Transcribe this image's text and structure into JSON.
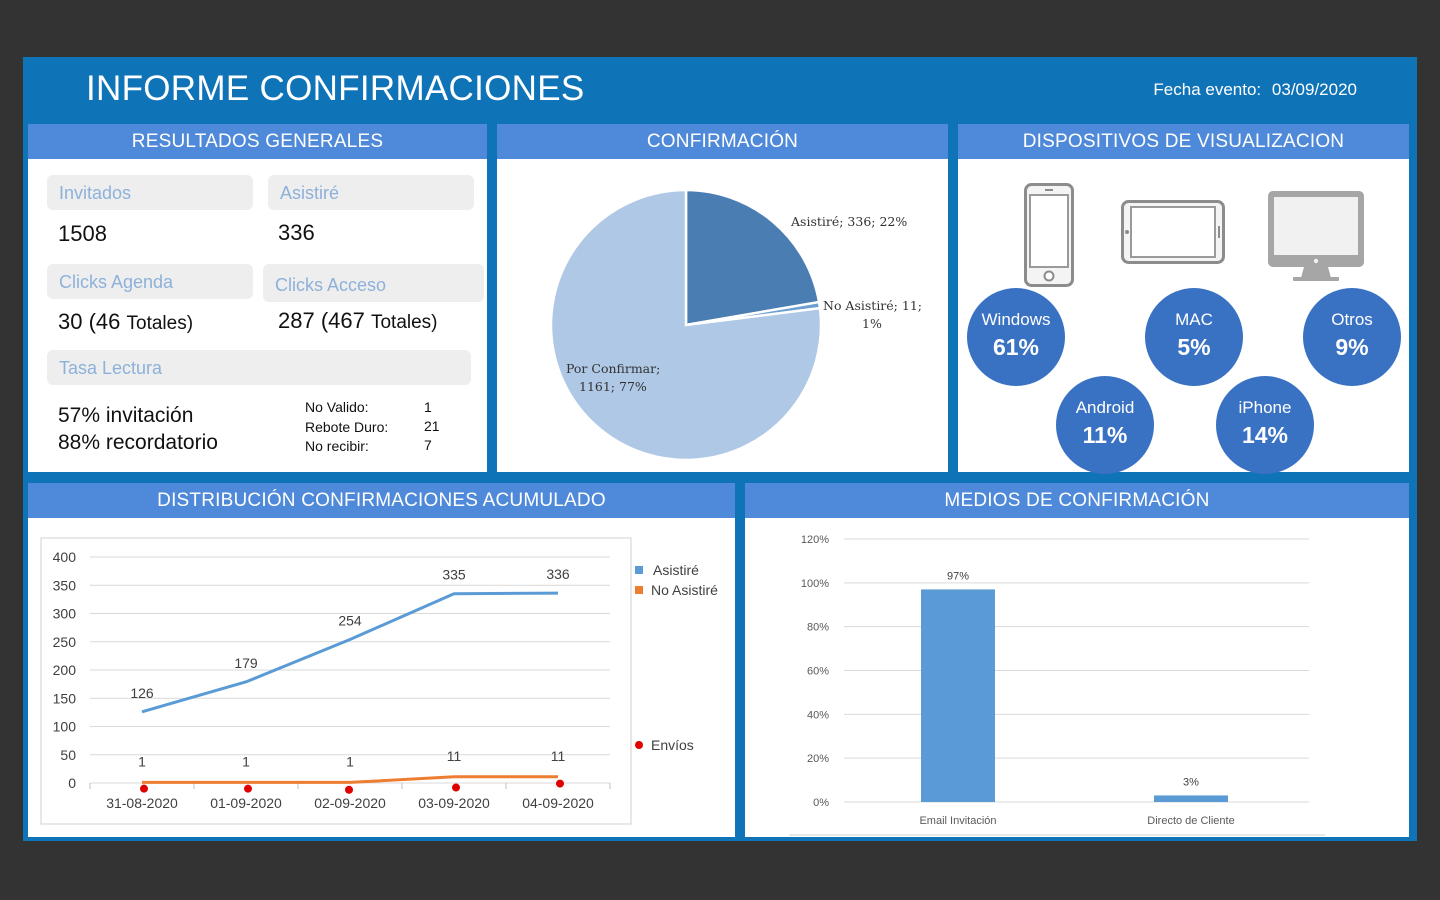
{
  "header": {
    "title": "INFORME CONFIRMACIONES",
    "event_label": "Fecha evento:",
    "event_date": "03/09/2020"
  },
  "results": {
    "title": "RESULTADOS GENERALES",
    "invitados_label": "Invitados",
    "invitados_value": "1508",
    "asistire_label": "Asistiré",
    "asistire_value": "336",
    "clicks_agenda_label": "Clicks Agenda",
    "clicks_agenda_value": "30 (46",
    "clicks_agenda_total": "Totales)",
    "clicks_acceso_label": "Clicks Acceso",
    "clicks_acceso_value": "287 (467",
    "clicks_acceso_total": "Totales)",
    "tasa_label": "Tasa Lectura",
    "tasa_invitacion": "57% invitación",
    "tasa_recordatorio": "88% recordatorio",
    "no_valido_label": "No Valido:",
    "no_valido_value": "1",
    "rebote_label": "Rebote Duro:",
    "rebote_value": "21",
    "no_recibir_label": "No recibir:",
    "no_recibir_value": "7"
  },
  "confirmation": {
    "title": "CONFIRMACIÓN",
    "labels": [
      "Asistiré; 336; 22%",
      "No Asistiré; 11;",
      "1%",
      "Por Confirmar;",
      "1161; 77%"
    ],
    "colors": {
      "asistire": "#4a7eb3",
      "no_asistire": "#6e9fd2",
      "por_confirmar": "#aec8e6"
    }
  },
  "devices": {
    "title": "DISPOSITIVOS DE VISUALIZACION",
    "icons": [
      "smartphone-icon",
      "tablet-icon",
      "monitor-icon"
    ],
    "items": [
      {
        "name": "Windows",
        "pct": "61%"
      },
      {
        "name": "MAC",
        "pct": "5%"
      },
      {
        "name": "Otros",
        "pct": "9%"
      },
      {
        "name": "Android",
        "pct": "11%"
      },
      {
        "name": "iPhone",
        "pct": "14%"
      }
    ]
  },
  "distribution": {
    "title": "DISTRIBUCIÓN CONFIRMACIONES ACUMULADO",
    "legend_asistire": "Asistiré",
    "legend_no_asistire": "No Asistiré",
    "legend_envios": "Envíos"
  },
  "medios": {
    "title": "MEDIOS DE CONFIRMACIÓN"
  },
  "chart_data": [
    {
      "type": "pie",
      "title": "CONFIRMACIÓN",
      "slices": [
        {
          "label": "Asistiré",
          "value": 336,
          "percent": 22
        },
        {
          "label": "No Asistiré",
          "value": 11,
          "percent": 1
        },
        {
          "label": "Por Confirmar",
          "value": 1161,
          "percent": 77
        }
      ]
    },
    {
      "type": "line",
      "title": "DISTRIBUCIÓN CONFIRMACIONES ACUMULADO",
      "categories": [
        "31-08-2020",
        "01-09-2020",
        "02-09-2020",
        "03-09-2020",
        "04-09-2020"
      ],
      "yticks": [
        0,
        50,
        100,
        150,
        200,
        250,
        300,
        350,
        400
      ],
      "ylim": [
        0,
        400
      ],
      "series": [
        {
          "name": "Asistiré",
          "values": [
            126,
            179,
            254,
            335,
            336
          ],
          "color": "#5b9bd5"
        },
        {
          "name": "No Asistiré",
          "values": [
            1,
            1,
            1,
            11,
            11
          ],
          "color": "#ed7d31"
        },
        {
          "name": "Envíos",
          "values": [
            -10,
            -10,
            -12,
            -8,
            -1
          ],
          "color": "#e00000"
        }
      ],
      "grid": true,
      "legend": "right"
    },
    {
      "type": "bar",
      "title": "MEDIOS DE CONFIRMACIÓN",
      "categories": [
        "Email Invitación",
        "Directo de Cliente"
      ],
      "values": [
        97,
        3
      ],
      "value_labels": [
        "97%",
        "3%"
      ],
      "yticks": [
        "0%",
        "20%",
        "40%",
        "60%",
        "80%",
        "100%",
        "120%"
      ],
      "ylim": [
        0,
        120
      ],
      "color": "#5b9bd5",
      "grid": true
    }
  ]
}
